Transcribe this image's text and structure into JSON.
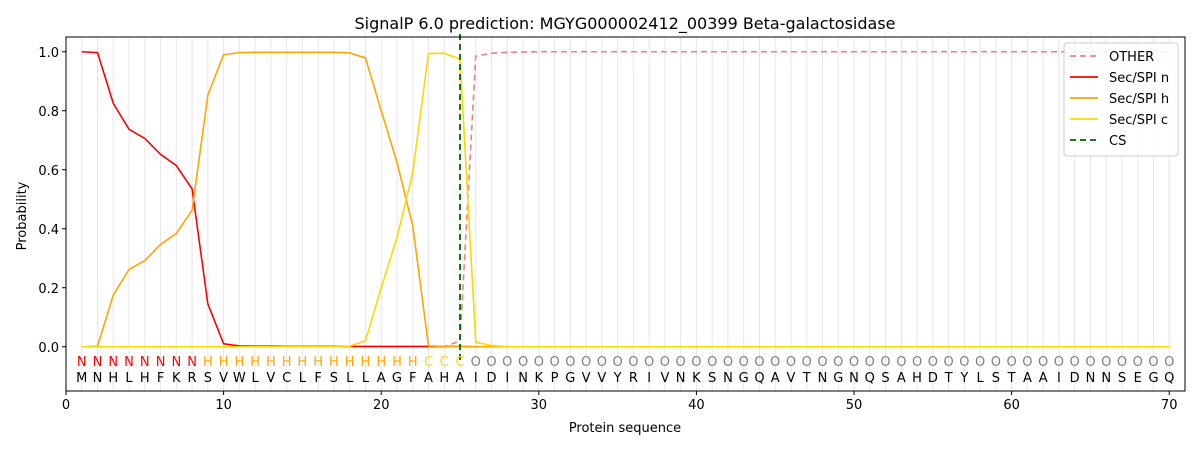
{
  "chart_data": {
    "type": "line",
    "title": "SignalP 6.0 prediction: MGYG000002412_00399 Beta-galactosidase",
    "xlabel": "Protein sequence",
    "ylabel": "Probability",
    "xlim": [
      0,
      71
    ],
    "ylim": [
      -0.15,
      1.05
    ],
    "xticks": [
      0,
      10,
      20,
      30,
      40,
      50,
      60,
      70
    ],
    "yticks": [
      "0.0",
      "0.2",
      "0.4",
      "0.6",
      "0.8",
      "1.0"
    ],
    "legend_position": "top-right",
    "x": [
      1,
      2,
      3,
      4,
      5,
      6,
      7,
      8,
      9,
      10,
      11,
      12,
      13,
      14,
      15,
      16,
      17,
      18,
      19,
      20,
      21,
      22,
      23,
      24,
      25,
      26,
      27,
      28,
      29,
      30,
      31,
      32,
      33,
      34,
      35,
      36,
      37,
      38,
      39,
      40,
      41,
      42,
      43,
      44,
      45,
      46,
      47,
      48,
      49,
      50,
      51,
      52,
      53,
      54,
      55,
      56,
      57,
      58,
      59,
      60,
      61,
      62,
      63,
      64,
      65,
      66,
      67,
      68,
      69,
      70
    ],
    "sequence": [
      "M",
      "N",
      "H",
      "L",
      "H",
      "F",
      "K",
      "R",
      "S",
      "V",
      "W",
      "L",
      "V",
      "C",
      "L",
      "F",
      "S",
      "L",
      "L",
      "A",
      "G",
      "F",
      "A",
      "H",
      "A",
      "I",
      "D",
      "I",
      "N",
      "K",
      "P",
      "G",
      "V",
      "V",
      "Y",
      "R",
      "I",
      "V",
      "N",
      "K",
      "S",
      "N",
      "G",
      "Q",
      "A",
      "V",
      "T",
      "N",
      "G",
      "N",
      "Q",
      "S",
      "A",
      "H",
      "D",
      "T",
      "Y",
      "L",
      "S",
      "T",
      "A",
      "A",
      "I",
      "D",
      "N",
      "N",
      "S",
      "E",
      "G",
      "Q"
    ],
    "labels": [
      "N",
      "N",
      "N",
      "N",
      "N",
      "N",
      "N",
      "N",
      "H",
      "H",
      "H",
      "H",
      "H",
      "H",
      "H",
      "H",
      "H",
      "H",
      "H",
      "H",
      "H",
      "H",
      "C",
      "C",
      "C",
      "O",
      "O",
      "O",
      "O",
      "O",
      "O",
      "O",
      "O",
      "O",
      "O",
      "O",
      "O",
      "O",
      "O",
      "O",
      "O",
      "O",
      "O",
      "O",
      "O",
      "O",
      "O",
      "O",
      "O",
      "O",
      "O",
      "O",
      "O",
      "O",
      "O",
      "O",
      "O",
      "O",
      "O",
      "O",
      "O",
      "O",
      "O",
      "O",
      "O",
      "O",
      "O",
      "O",
      "O",
      "O"
    ],
    "label_colors": {
      "N": "#ff0000",
      "H": "#ffa500",
      "C": "#ffd700",
      "O": "#808080"
    },
    "cs_position": 25,
    "series": [
      {
        "name": "OTHER",
        "color": "#f08080",
        "dash": "dashed",
        "values": [
          0,
          0,
          0,
          0,
          0,
          0,
          0,
          0,
          0,
          0,
          0,
          0,
          0,
          0,
          0,
          0,
          0,
          0,
          0,
          0,
          0,
          0,
          0,
          0,
          0.02,
          0.985,
          0.995,
          0.998,
          0.999,
          1,
          1,
          1,
          1,
          1,
          1,
          1,
          1,
          1,
          1,
          1,
          1,
          1,
          1,
          1,
          1,
          1,
          1,
          1,
          1,
          1,
          1,
          1,
          1,
          1,
          1,
          1,
          1,
          1,
          1,
          1,
          1,
          1,
          1,
          1,
          1,
          1,
          1,
          1,
          1,
          1
        ]
      },
      {
        "name": "Sec/SPI n",
        "color": "#ff0000",
        "dash": "solid",
        "values": [
          1.0,
          0.997,
          0.825,
          0.737,
          0.706,
          0.652,
          0.614,
          0.535,
          0.145,
          0.01,
          0.003,
          0.002,
          0.002,
          0.001,
          0.001,
          0.001,
          0.001,
          0.001,
          0.001,
          0.001,
          0.001,
          0.001,
          0.001,
          0.001,
          0.001,
          0,
          0,
          0,
          0,
          0,
          0,
          0,
          0,
          0,
          0,
          0,
          0,
          0,
          0,
          0,
          0,
          0,
          0,
          0,
          0,
          0,
          0,
          0,
          0,
          0,
          0,
          0,
          0,
          0,
          0,
          0,
          0,
          0,
          0,
          0,
          0,
          0,
          0,
          0,
          0,
          0,
          0,
          0,
          0,
          0
        ]
      },
      {
        "name": "Sec/SPI h",
        "color": "#ffa500",
        "dash": "solid",
        "values": [
          0,
          0.002,
          0.175,
          0.262,
          0.292,
          0.347,
          0.384,
          0.463,
          0.853,
          0.99,
          0.997,
          0.998,
          0.998,
          0.998,
          0.998,
          0.998,
          0.998,
          0.996,
          0.979,
          0.8,
          0.625,
          0.41,
          0.003,
          0.001,
          0.001,
          0,
          0,
          0,
          0,
          0,
          0,
          0,
          0,
          0,
          0,
          0,
          0,
          0,
          0,
          0,
          0,
          0,
          0,
          0,
          0,
          0,
          0,
          0,
          0,
          0,
          0,
          0,
          0,
          0,
          0,
          0,
          0,
          0,
          0,
          0,
          0,
          0,
          0,
          0,
          0,
          0,
          0,
          0,
          0,
          0
        ]
      },
      {
        "name": "Sec/SPI c",
        "color": "#ffd700",
        "dash": "solid",
        "values": [
          0,
          0,
          0,
          0,
          0,
          0,
          0,
          0,
          0,
          0,
          0,
          0,
          0,
          0,
          0,
          0,
          0,
          0.002,
          0.02,
          0.2,
          0.37,
          0.59,
          0.994,
          0.995,
          0.975,
          0.015,
          0.004,
          0,
          0,
          0,
          0,
          0,
          0,
          0,
          0,
          0,
          0,
          0,
          0,
          0,
          0,
          0,
          0,
          0,
          0,
          0,
          0,
          0,
          0,
          0,
          0,
          0,
          0,
          0,
          0,
          0,
          0,
          0,
          0,
          0,
          0,
          0,
          0,
          0,
          0,
          0,
          0,
          0,
          0,
          0
        ]
      }
    ],
    "cs_series": {
      "name": "CS",
      "color": "#006400",
      "dash": "dashed"
    }
  }
}
